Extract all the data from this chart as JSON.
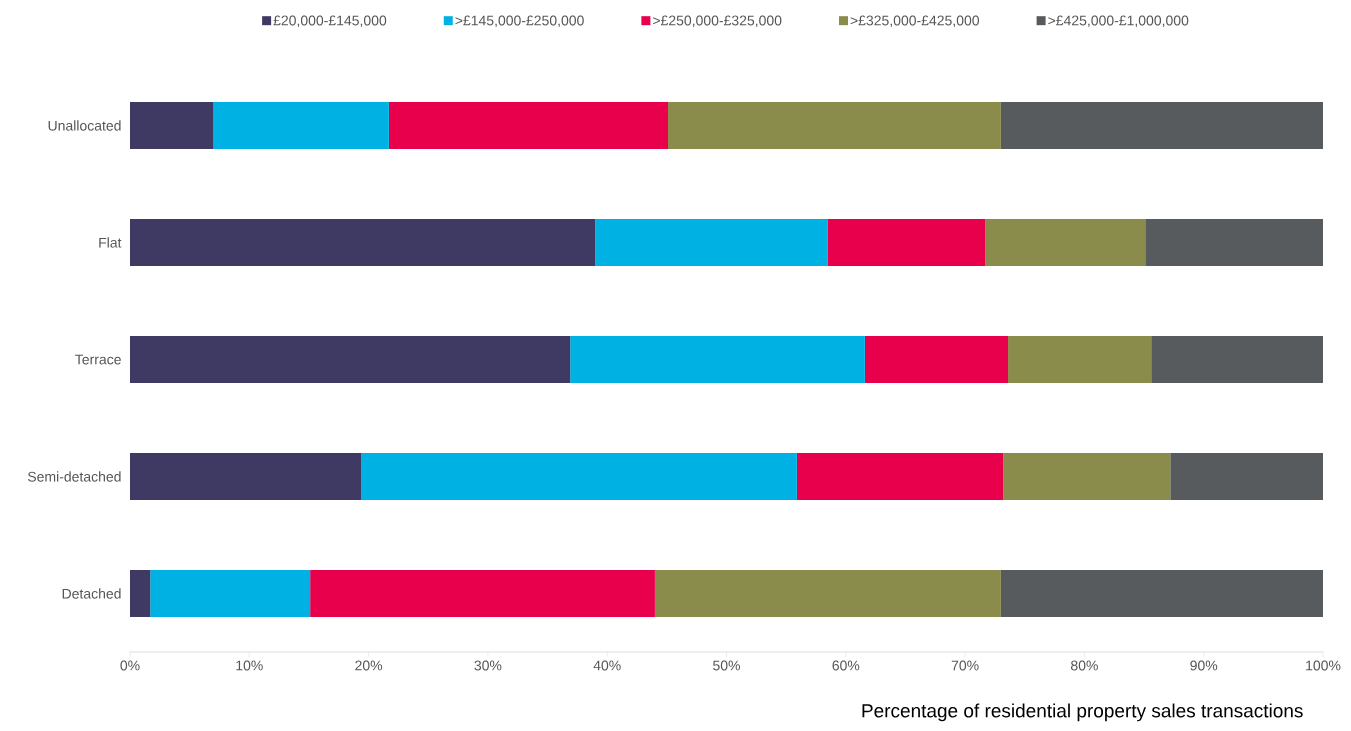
{
  "chart_data": {
    "type": "bar",
    "orientation": "horizontal",
    "stacked": true,
    "xlabel": "Percentage of residential property sales transactions",
    "categories": [
      "Unallocated",
      "Flat",
      "Terrace",
      "Semi-detached",
      "Detached"
    ],
    "series": [
      {
        "name": "£20,000-£145,000",
        "color": "#3f3a63",
        "values": [
          7.0,
          39.0,
          36.9,
          19.4,
          1.7
        ]
      },
      {
        "name": ">£145,000-£250,000",
        "color": "#00b2e3",
        "values": [
          14.7,
          19.5,
          24.7,
          36.5,
          13.4
        ]
      },
      {
        "name": ">£250,000-£325,000",
        "color": "#e8004c",
        "values": [
          23.4,
          13.2,
          12.0,
          17.3,
          28.9
        ]
      },
      {
        "name": ">£325,000-£425,000",
        "color": "#8a8c4b",
        "values": [
          27.9,
          13.4,
          12.0,
          14.0,
          29.0
        ]
      },
      {
        "name": ">£425,000-£1,000,000",
        "color": "#575b5e",
        "values": [
          27.0,
          14.9,
          14.4,
          12.9,
          27.0
        ]
      }
    ],
    "xlim": [
      0,
      100
    ],
    "xticks": [
      {
        "value": 0,
        "label": "0%"
      },
      {
        "value": 10,
        "label": "10%"
      },
      {
        "value": 20,
        "label": "20%"
      },
      {
        "value": 30,
        "label": "30%"
      },
      {
        "value": 40,
        "label": "40%"
      },
      {
        "value": 50,
        "label": "50%"
      },
      {
        "value": 60,
        "label": "60%"
      },
      {
        "value": 70,
        "label": "70%"
      },
      {
        "value": 80,
        "label": "80%"
      },
      {
        "value": 90,
        "label": "90%"
      },
      {
        "value": 100,
        "label": "100%"
      }
    ],
    "legend": "top"
  }
}
